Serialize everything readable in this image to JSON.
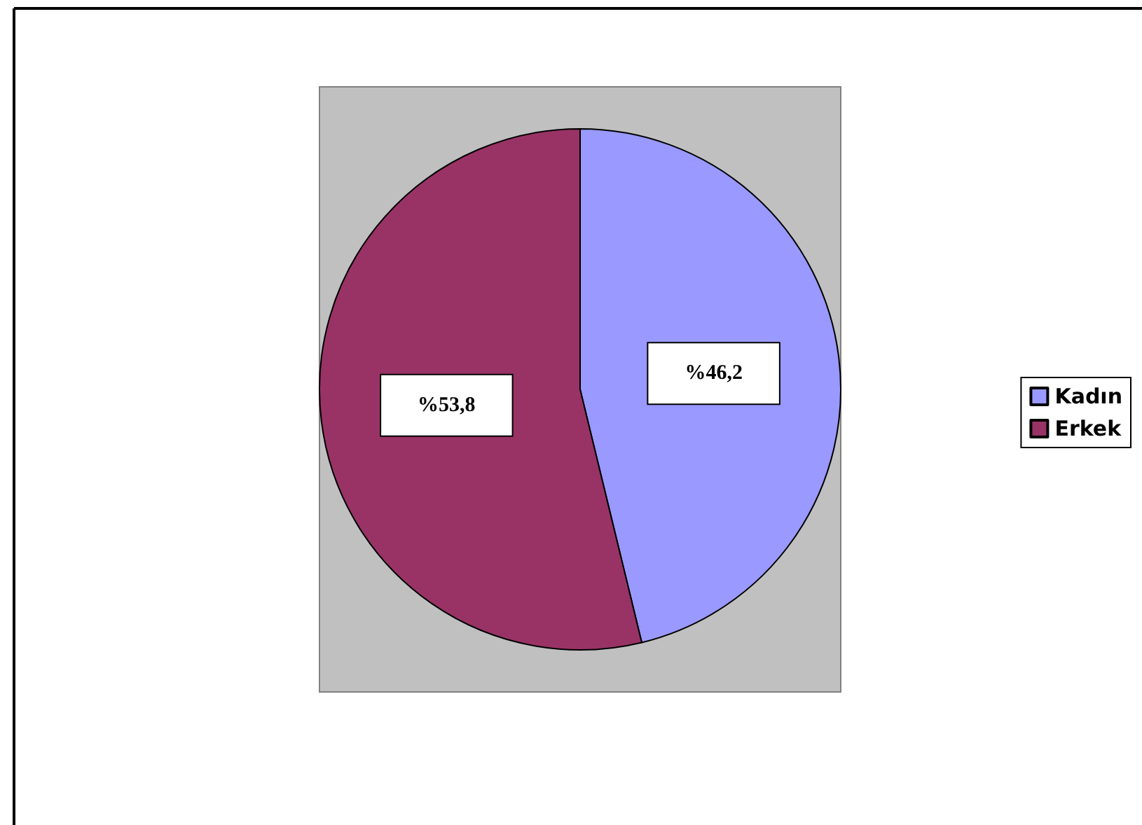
{
  "chart_data": {
    "type": "pie",
    "categories": [
      "Kadın",
      "Erkek"
    ],
    "values": [
      46.2,
      53.8
    ],
    "colors": [
      "#9999ff",
      "#993366"
    ],
    "value_labels": [
      "%46,2",
      "%53,8"
    ],
    "legend": "right"
  }
}
